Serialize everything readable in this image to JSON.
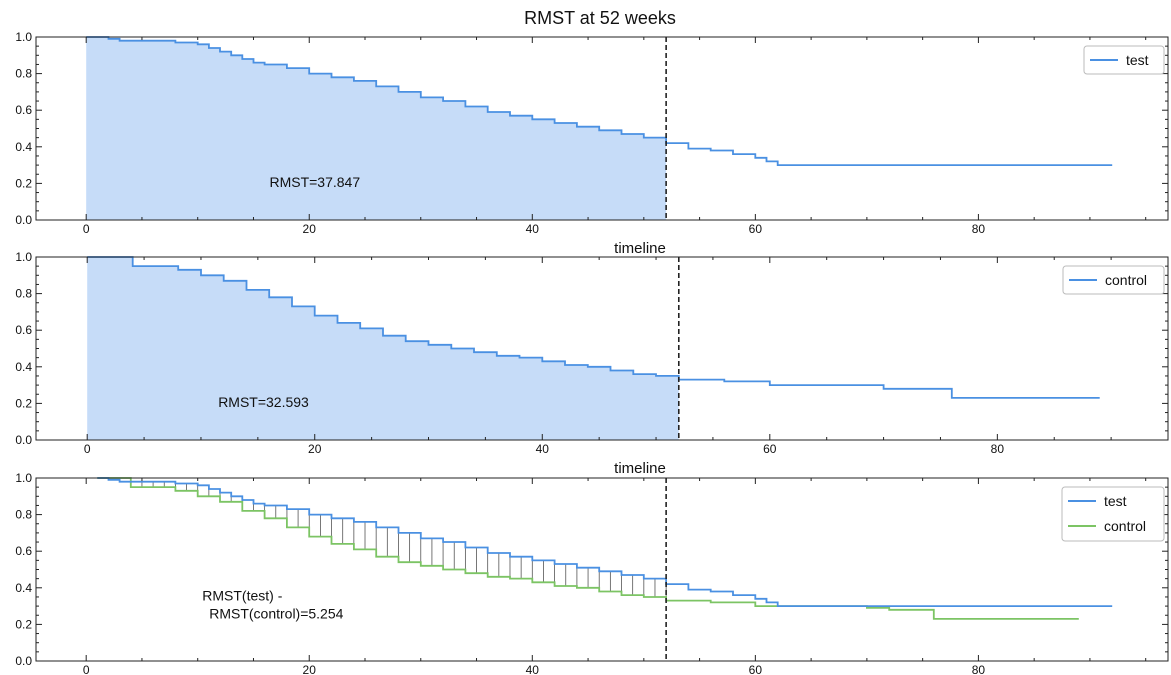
{
  "chart_data": [
    {
      "type": "line",
      "title": "RMST at 52 weeks",
      "xlabel": "timeline",
      "xlim": [
        -4.5,
        97
      ],
      "ylim": [
        0,
        1
      ],
      "xticks": [
        "0",
        "20",
        "40",
        "60",
        "80"
      ],
      "yticks": [
        "0.0",
        "0.2",
        "0.4",
        "0.6",
        "0.8",
        "1.0"
      ],
      "vline_x": 52,
      "legend_position": "top-right",
      "shaded_area": "under test curve from 0 to 52",
      "colors": {
        "test": "#4a90e2",
        "fill": "#c6dcf8",
        "vline": "#222222"
      },
      "annotation": {
        "text": "RMST=37.847",
        "x": 20.5,
        "y": 0.18
      },
      "series": [
        {
          "name": "test",
          "x": [
            0,
            1,
            2,
            3,
            4,
            6,
            8,
            10,
            11,
            12,
            13,
            14,
            15,
            16,
            18,
            20,
            22,
            24,
            26,
            28,
            30,
            32,
            34,
            36,
            38,
            40,
            42,
            44,
            46,
            48,
            50,
            52,
            54,
            56,
            58,
            60,
            61,
            62,
            64,
            70,
            80,
            92
          ],
          "y": [
            1.0,
            1.0,
            0.99,
            0.98,
            0.98,
            0.98,
            0.97,
            0.96,
            0.94,
            0.92,
            0.9,
            0.88,
            0.86,
            0.85,
            0.83,
            0.8,
            0.78,
            0.76,
            0.73,
            0.7,
            0.67,
            0.65,
            0.62,
            0.59,
            0.57,
            0.55,
            0.53,
            0.51,
            0.49,
            0.47,
            0.45,
            0.42,
            0.39,
            0.38,
            0.36,
            0.34,
            0.32,
            0.3,
            0.3,
            0.3,
            0.3,
            0.3
          ]
        }
      ]
    },
    {
      "type": "line",
      "xlabel": "timeline",
      "xlim": [
        -4.5,
        95
      ],
      "ylim": [
        0,
        1
      ],
      "xticks": [
        "0",
        "20",
        "40",
        "60",
        "80"
      ],
      "yticks": [
        "0.0",
        "0.2",
        "0.4",
        "0.6",
        "0.8",
        "1.0"
      ],
      "vline_x": 52,
      "legend_position": "top-right",
      "shaded_area": "under control curve from 0 to 52",
      "colors": {
        "control": "#4a90e2",
        "fill": "#c6dcf8",
        "vline": "#222222"
      },
      "annotation": {
        "text": "RMST=32.593",
        "x": 15.5,
        "y": 0.18
      },
      "series": [
        {
          "name": "control",
          "x": [
            0,
            3.9,
            4,
            6,
            8,
            10,
            12,
            14,
            16,
            18,
            20,
            22,
            24,
            26,
            28,
            30,
            32,
            34,
            36,
            38,
            40,
            42,
            44,
            46,
            48,
            50,
            52,
            56,
            60,
            64,
            70,
            76,
            80,
            89
          ],
          "y": [
            1.0,
            1.0,
            0.95,
            0.95,
            0.93,
            0.9,
            0.87,
            0.82,
            0.78,
            0.73,
            0.68,
            0.64,
            0.61,
            0.57,
            0.54,
            0.52,
            0.5,
            0.48,
            0.46,
            0.45,
            0.43,
            0.41,
            0.4,
            0.38,
            0.36,
            0.35,
            0.33,
            0.32,
            0.3,
            0.3,
            0.28,
            0.23,
            0.23,
            0.23
          ]
        }
      ]
    },
    {
      "type": "line",
      "xlim": [
        -4.5,
        97
      ],
      "ylim": [
        0,
        1
      ],
      "xticks": [
        "0",
        "20",
        "40",
        "60",
        "80"
      ],
      "yticks": [
        "0.0",
        "0.2",
        "0.4",
        "0.6",
        "0.8",
        "1.0"
      ],
      "vline_x": 52,
      "legend_position": "top-right",
      "hatched_area": "between test and control curves from 0 to 52",
      "colors": {
        "test": "#4a90e2",
        "control": "#7cc464",
        "vline": "#222222",
        "hatch": "#555555"
      },
      "annotation": {
        "line1": "RMST(test) -",
        "line2": "RMST(control)=5.254",
        "x": 14,
        "y": 0.33
      },
      "series": [
        {
          "name": "test",
          "x": [
            1,
            2,
            3,
            4,
            6,
            8,
            10,
            11,
            12,
            13,
            14,
            15,
            16,
            18,
            20,
            22,
            24,
            26,
            28,
            30,
            32,
            34,
            36,
            38,
            40,
            42,
            44,
            46,
            48,
            50,
            52,
            54,
            56,
            58,
            60,
            61,
            62,
            64,
            70,
            80,
            92
          ],
          "y": [
            1.0,
            0.99,
            0.98,
            0.98,
            0.98,
            0.97,
            0.96,
            0.94,
            0.92,
            0.9,
            0.88,
            0.86,
            0.85,
            0.83,
            0.8,
            0.78,
            0.76,
            0.73,
            0.7,
            0.67,
            0.65,
            0.62,
            0.59,
            0.57,
            0.55,
            0.53,
            0.51,
            0.49,
            0.47,
            0.45,
            0.42,
            0.39,
            0.38,
            0.36,
            0.34,
            0.32,
            0.3,
            0.3,
            0.3,
            0.3,
            0.3
          ]
        },
        {
          "name": "control",
          "x": [
            1,
            3.9,
            4,
            6,
            8,
            10,
            12,
            14,
            16,
            18,
            20,
            22,
            24,
            26,
            28,
            30,
            32,
            34,
            36,
            38,
            40,
            42,
            44,
            46,
            48,
            50,
            52,
            56,
            60,
            64,
            70,
            72,
            76,
            80,
            89
          ],
          "y": [
            1.0,
            1.0,
            0.95,
            0.95,
            0.93,
            0.9,
            0.87,
            0.82,
            0.78,
            0.73,
            0.68,
            0.64,
            0.61,
            0.57,
            0.54,
            0.52,
            0.5,
            0.48,
            0.46,
            0.45,
            0.43,
            0.41,
            0.4,
            0.38,
            0.36,
            0.35,
            0.33,
            0.32,
            0.3,
            0.3,
            0.29,
            0.28,
            0.23,
            0.23,
            0.23
          ]
        }
      ]
    }
  ]
}
